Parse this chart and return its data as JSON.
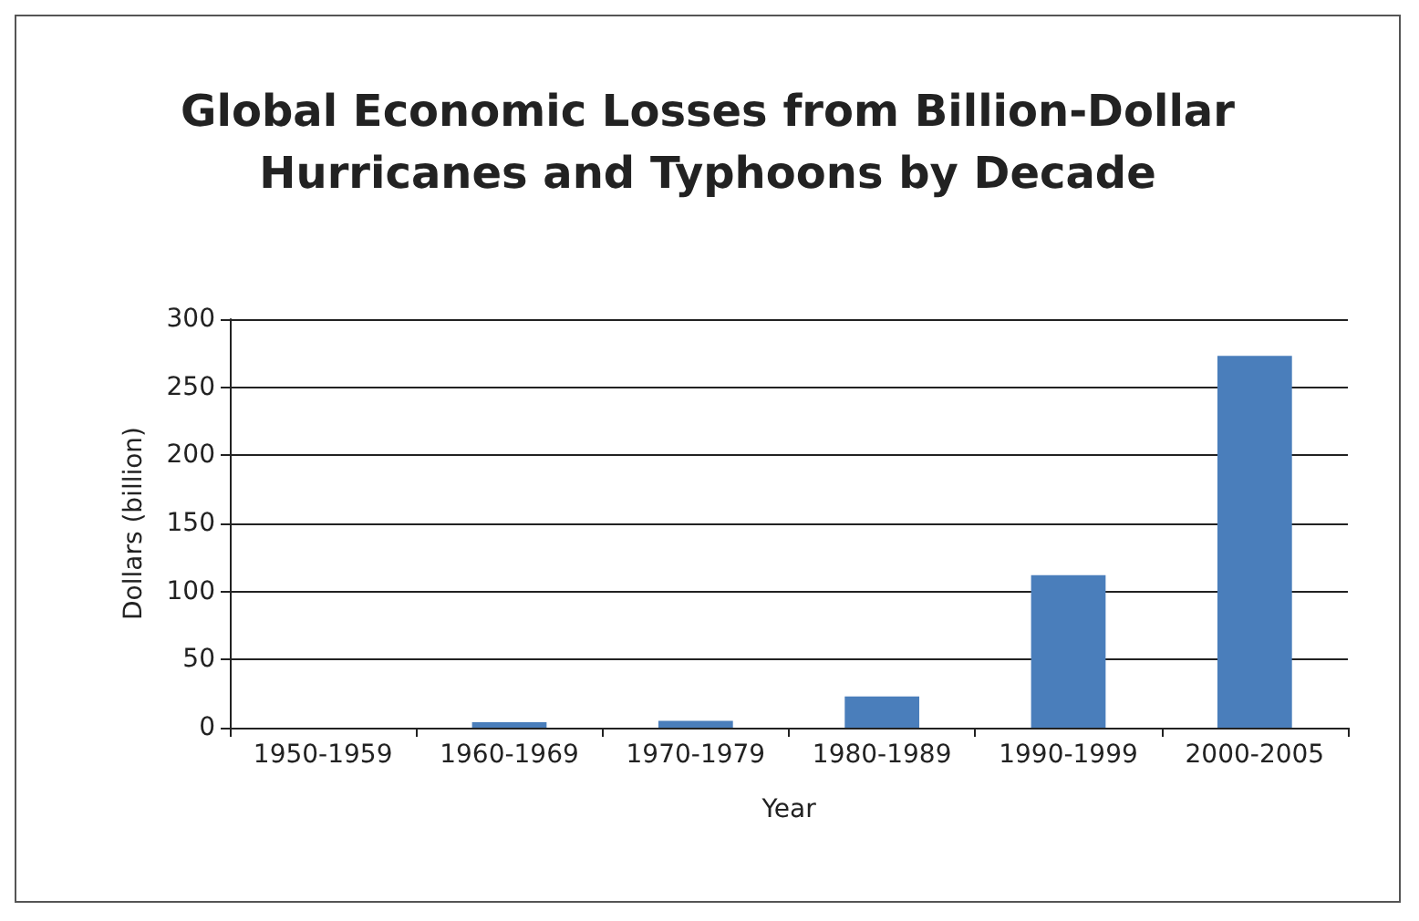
{
  "chart_data": {
    "type": "bar",
    "title": "Global Economic Losses from Billion-Dollar\nHurricanes and Typhoons by Decade",
    "categories": [
      "1950-1959",
      "1960-1969",
      "1970-1979",
      "1980-1989",
      "1990-1999",
      "2000-2005"
    ],
    "values": [
      0,
      4,
      5,
      23,
      112,
      273
    ],
    "color": "#4a7ebb",
    "xlabel": "Year",
    "ylabel": "Dollars (billion)",
    "ylim": [
      0,
      300
    ],
    "yticks": [
      0,
      50,
      100,
      150,
      200,
      250,
      300
    ],
    "grid": "y"
  }
}
